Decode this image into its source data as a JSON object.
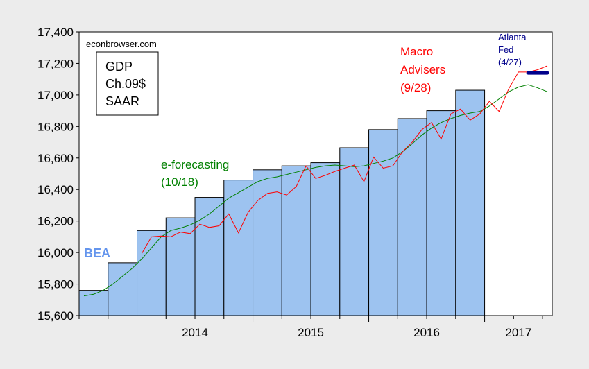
{
  "chart_data": {
    "type": "bar",
    "ylim": [
      15600,
      17400
    ],
    "yticks": [
      15600,
      15800,
      16000,
      16200,
      16400,
      16600,
      16800,
      17000,
      17200,
      17400
    ],
    "ytick_labels": [
      "15,600",
      "15,800",
      "16,000",
      "16,200",
      "16,400",
      "16,600",
      "16,800",
      "17,000",
      "17,200",
      "17,400"
    ],
    "xlim": [
      "2013-07",
      "2017-07"
    ],
    "year_labels": [
      {
        "label": "2014",
        "year": 2014
      },
      {
        "label": "2015",
        "year": 2015
      },
      {
        "label": "2016",
        "year": 2016
      },
      {
        "label": "2017",
        "year": 2017
      }
    ],
    "grid": false,
    "annotations": {
      "source": "econbrowser.com",
      "box_lines": [
        "GDP",
        "Ch.09$",
        "SAAR"
      ],
      "bea_label": "BEA",
      "eforecasting_lines": [
        "e-forecasting",
        "(10/18)"
      ],
      "macro_lines": [
        "Macro",
        "Advisers",
        "(9/28)"
      ],
      "atlanta_lines": [
        "Atlanta",
        "Fed",
        "(4/27)"
      ]
    },
    "colors": {
      "bars": "#9dc3f0",
      "bar_edge": "#000000",
      "bea": "#6495ed",
      "eforecasting": "#008000",
      "macro": "#ff0000",
      "atlanta": "#00008b"
    },
    "bars": [
      {
        "quarter": "2013Q3",
        "value": 15760
      },
      {
        "quarter": "2013Q4",
        "value": 15935
      },
      {
        "quarter": "2014Q1",
        "value": 16140
      },
      {
        "quarter": "2014Q2",
        "value": 16220
      },
      {
        "quarter": "2014Q3",
        "value": 16350
      },
      {
        "quarter": "2014Q4",
        "value": 16460
      },
      {
        "quarter": "2015Q1",
        "value": 16525
      },
      {
        "quarter": "2015Q2",
        "value": 16550
      },
      {
        "quarter": "2015Q3",
        "value": 16570
      },
      {
        "quarter": "2015Q4",
        "value": 16665
      },
      {
        "quarter": "2016Q1",
        "value": 16780
      },
      {
        "quarter": "2016Q2",
        "value": 16850
      },
      {
        "quarter": "2016Q3",
        "value": 16900
      },
      {
        "quarter": "2016Q4",
        "value": 17030
      }
    ],
    "series": [
      {
        "color": "#008000",
        "points": [
          [
            "2013-07",
            15725
          ],
          [
            "2013-08",
            15735
          ],
          [
            "2013-09",
            15760
          ],
          [
            "2013-10",
            15800
          ],
          [
            "2013-11",
            15850
          ],
          [
            "2013-12",
            15900
          ],
          [
            "2014-01",
            15960
          ],
          [
            "2014-02",
            16030
          ],
          [
            "2014-03",
            16100
          ],
          [
            "2014-04",
            16140
          ],
          [
            "2014-05",
            16155
          ],
          [
            "2014-06",
            16175
          ],
          [
            "2014-07",
            16205
          ],
          [
            "2014-08",
            16245
          ],
          [
            "2014-09",
            16295
          ],
          [
            "2014-10",
            16345
          ],
          [
            "2014-11",
            16380
          ],
          [
            "2014-12",
            16415
          ],
          [
            "2015-01",
            16450
          ],
          [
            "2015-02",
            16470
          ],
          [
            "2015-03",
            16480
          ],
          [
            "2015-04",
            16495
          ],
          [
            "2015-05",
            16510
          ],
          [
            "2015-06",
            16525
          ],
          [
            "2015-07",
            16540
          ],
          [
            "2015-08",
            16550
          ],
          [
            "2015-09",
            16555
          ],
          [
            "2015-10",
            16550
          ],
          [
            "2015-11",
            16545
          ],
          [
            "2015-12",
            16550
          ],
          [
            "2016-01",
            16565
          ],
          [
            "2016-02",
            16580
          ],
          [
            "2016-03",
            16600
          ],
          [
            "2016-04",
            16640
          ],
          [
            "2016-05",
            16690
          ],
          [
            "2016-06",
            16745
          ],
          [
            "2016-07",
            16790
          ],
          [
            "2016-08",
            16825
          ],
          [
            "2016-09",
            16850
          ],
          [
            "2016-10",
            16870
          ],
          [
            "2016-11",
            16885
          ],
          [
            "2016-12",
            16895
          ],
          [
            "2017-01",
            16930
          ],
          [
            "2017-02",
            16975
          ],
          [
            "2017-03",
            17020
          ],
          [
            "2017-04",
            17050
          ],
          [
            "2017-05",
            17065
          ],
          [
            "2017-06",
            17045
          ],
          [
            "2017-07",
            17020
          ]
        ]
      },
      {
        "color": "#ff0000",
        "points": [
          [
            "2014-01",
            15995
          ],
          [
            "2014-02",
            16100
          ],
          [
            "2014-03",
            16105
          ],
          [
            "2014-04",
            16100
          ],
          [
            "2014-05",
            16130
          ],
          [
            "2014-06",
            16120
          ],
          [
            "2014-07",
            16180
          ],
          [
            "2014-08",
            16160
          ],
          [
            "2014-09",
            16170
          ],
          [
            "2014-10",
            16245
          ],
          [
            "2014-11",
            16125
          ],
          [
            "2014-12",
            16255
          ],
          [
            "2015-01",
            16330
          ],
          [
            "2015-02",
            16375
          ],
          [
            "2015-03",
            16385
          ],
          [
            "2015-04",
            16365
          ],
          [
            "2015-05",
            16420
          ],
          [
            "2015-06",
            16550
          ],
          [
            "2015-07",
            16470
          ],
          [
            "2015-08",
            16490
          ],
          [
            "2015-09",
            16515
          ],
          [
            "2015-10",
            16535
          ],
          [
            "2015-11",
            16555
          ],
          [
            "2015-12",
            16450
          ],
          [
            "2016-01",
            16605
          ],
          [
            "2016-02",
            16535
          ],
          [
            "2016-03",
            16550
          ],
          [
            "2016-04",
            16640
          ],
          [
            "2016-05",
            16700
          ],
          [
            "2016-06",
            16780
          ],
          [
            "2016-07",
            16825
          ],
          [
            "2016-08",
            16720
          ],
          [
            "2016-09",
            16880
          ],
          [
            "2016-10",
            16910
          ],
          [
            "2016-11",
            16840
          ],
          [
            "2016-12",
            16880
          ],
          [
            "2017-01",
            16960
          ],
          [
            "2017-02",
            16895
          ],
          [
            "2017-03",
            17040
          ],
          [
            "2017-04",
            17145
          ],
          [
            "2017-05",
            17145
          ],
          [
            "2017-06",
            17160
          ],
          [
            "2017-07",
            17185
          ]
        ]
      },
      {
        "color": "#00008b",
        "points": [
          [
            "2017-05",
            17140
          ],
          [
            "2017-07",
            17140
          ]
        ]
      }
    ]
  }
}
